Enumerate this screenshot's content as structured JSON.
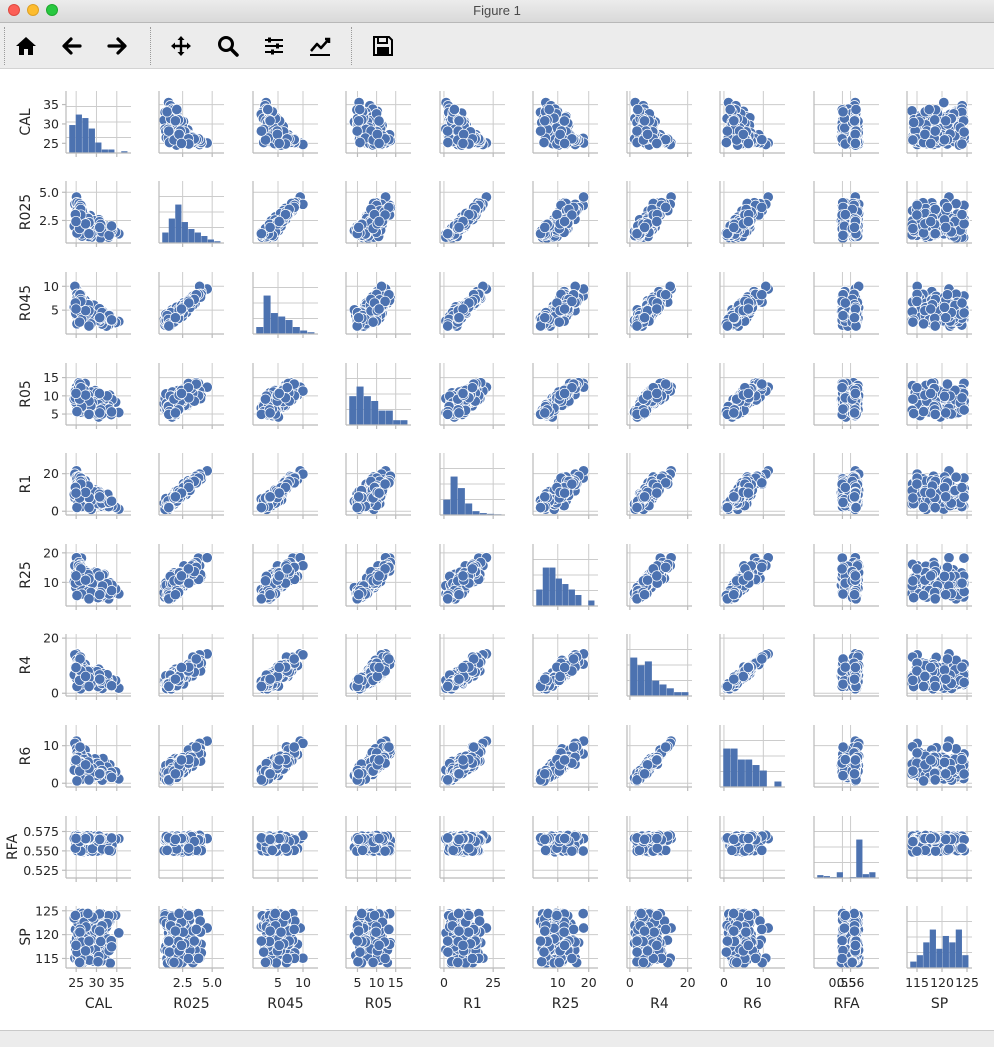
{
  "window": {
    "title": "Figure 1"
  },
  "toolbar": {
    "buttons": [
      {
        "name": "home-button",
        "icon": "home-icon"
      },
      {
        "name": "back-button",
        "icon": "arrow-left-icon"
      },
      {
        "name": "forward-button",
        "icon": "arrow-right-icon"
      },
      {
        "name": "pan-button",
        "icon": "move-icon"
      },
      {
        "name": "zoom-button",
        "icon": "magnifier-icon"
      },
      {
        "name": "subplots-button",
        "icon": "sliders-icon"
      },
      {
        "name": "edit-axis-button",
        "icon": "line-chart-icon"
      },
      {
        "name": "save-button",
        "icon": "floppy-disk-icon"
      }
    ]
  },
  "colors": {
    "marker": "#4c72b0",
    "grid": "#cccccc",
    "spine": "#bbbbbb",
    "text": "#262626"
  },
  "chart_data": {
    "type": "pairplot",
    "variables": [
      "CAL",
      "R025",
      "R045",
      "R05",
      "R1",
      "R25",
      "R4",
      "R6",
      "RFA",
      "SP"
    ],
    "ranges": {
      "CAL": [
        22.5,
        38.5
      ],
      "R025": [
        0.5,
        6.0
      ],
      "R045": [
        0,
        13
      ],
      "R05": [
        2,
        19
      ],
      "R1": [
        -2,
        31
      ],
      "R25": [
        2,
        23
      ],
      "R4": [
        -1,
        21.5
      ],
      "R6": [
        -1,
        15.5
      ],
      "RFA": [
        0.515,
        0.595
      ],
      "SP": [
        113,
        126
      ]
    },
    "ticks": {
      "CAL": [
        25,
        30,
        35
      ],
      "R025": [
        2.5,
        5.0
      ],
      "R045": [
        5,
        10
      ],
      "R05": [
        5,
        10,
        15
      ],
      "R1": [
        0,
        20
      ],
      "R25": [
        10,
        20
      ],
      "R4": [
        0,
        20
      ],
      "R6": [
        0,
        10
      ],
      "RFA": [
        0.525,
        0.55,
        0.575
      ],
      "SP": [
        115,
        120,
        125
      ]
    },
    "tick_labels_y": {
      "CAL": [
        "25",
        "30",
        "35"
      ],
      "R025": [
        "2.5",
        "5.0"
      ],
      "R045": [
        "5",
        "10"
      ],
      "R05": [
        "5",
        "10",
        "15"
      ],
      "R1": [
        "0",
        "20"
      ],
      "R25": [
        "10",
        "20"
      ],
      "R4": [
        "0",
        "20"
      ],
      "R6": [
        "0",
        "10"
      ],
      "RFA": [
        "0.525",
        "0.550",
        "0.575"
      ],
      "SP": [
        "115",
        "120",
        "125"
      ]
    },
    "x_axis_ticks": {
      "CAL": [
        25,
        30,
        35
      ],
      "R025": [
        2.5,
        5.0
      ],
      "R045": [
        5,
        10
      ],
      "R05": [
        5,
        10,
        15
      ],
      "R1": [
        0,
        25
      ],
      "R25": [
        10,
        20
      ],
      "R4": [
        0,
        20
      ],
      "R6": [
        0,
        10
      ],
      "RFA": [
        0.55,
        0.56
      ],
      "SP": [
        115,
        120,
        125
      ]
    },
    "tick_labels_x": {
      "CAL": [
        "25",
        "30",
        "35"
      ],
      "R025": [
        "2.5",
        "5.0"
      ],
      "R045": [
        "5",
        "10"
      ],
      "R05": [
        "5",
        "10",
        "15"
      ],
      "R1": [
        "0",
        "25"
      ],
      "R25": [
        "10",
        "20"
      ],
      "R4": [
        "0",
        "20"
      ],
      "R6": [
        "0",
        "10"
      ],
      "RFA": [
        "0.55",
        "0.56"
      ],
      "SP": [
        "115",
        "120",
        "125"
      ]
    },
    "histograms": {
      "CAL": [
        8,
        11,
        10,
        7,
        3,
        1,
        1,
        0,
        0.5
      ],
      "R025": [
        3,
        7,
        11,
        6,
        4,
        3,
        2,
        1,
        0.5
      ],
      "R045": [
        2,
        11,
        6,
        5,
        4,
        2,
        1,
        0.5
      ],
      "R05": [
        6,
        8,
        6,
        5,
        3,
        3,
        1,
        1
      ],
      "R1": [
        4,
        10,
        7,
        3,
        1,
        0.5,
        0.3,
        0.2
      ],
      "R25": [
        3,
        7,
        7,
        5,
        4,
        3,
        2,
        0,
        1
      ],
      "R4": [
        10,
        8,
        9,
        4,
        3,
        2,
        1,
        1
      ],
      "R6": [
        7,
        7,
        5,
        5,
        4,
        3,
        0,
        1
      ],
      "RFA": [
        1.5,
        1,
        0.5,
        3,
        0,
        0.5,
        20,
        2,
        3
      ],
      "SP": [
        1,
        2,
        4,
        6,
        3,
        5,
        4,
        6,
        2
      ]
    },
    "grid": true,
    "legend": "none"
  }
}
